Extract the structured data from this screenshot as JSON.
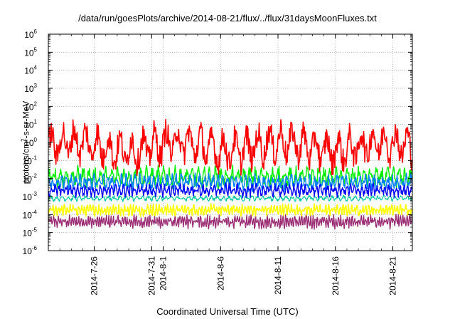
{
  "chart_data": {
    "type": "line",
    "title": "/data/run/goesPlots/archive/2014-08-21/flux/../flux/31daysMoonFluxes.txt",
    "xlabel": "Coordinated Universal Time (UTC)",
    "ylabel": {
      "prefix": "protons/cm",
      "exp": "2",
      "suffix": "-s-sr-MeV"
    },
    "yscale": "log",
    "ylim_exp": [
      -6,
      6
    ],
    "yticks": [
      {
        "base": "10",
        "exp": "-6"
      },
      {
        "base": "10",
        "exp": "-5"
      },
      {
        "base": "10",
        "exp": "-4"
      },
      {
        "base": "10",
        "exp": "-3"
      },
      {
        "base": "10",
        "exp": "-2"
      },
      {
        "base": "10",
        "exp": "-1"
      },
      {
        "base": "10",
        "exp": "0"
      },
      {
        "base": "10",
        "exp": "1"
      },
      {
        "base": "10",
        "exp": "2"
      },
      {
        "base": "10",
        "exp": "3"
      },
      {
        "base": "10",
        "exp": "4"
      },
      {
        "base": "10",
        "exp": "5"
      },
      {
        "base": "10",
        "exp": "6"
      }
    ],
    "xrange_days": [
      "2014-07-22",
      "2014-08-22.7"
    ],
    "xticks": [
      {
        "date": "2014-07-26",
        "label": "2014-7-26"
      },
      {
        "date": "2014-07-31",
        "label": "2014-7-31"
      },
      {
        "date": "2014-08-01",
        "label": "2014-8-1"
      },
      {
        "date": "2014-08-06",
        "label": "2014-8-6"
      },
      {
        "date": "2014-08-11",
        "label": "2014-8-11"
      },
      {
        "date": "2014-08-16",
        "label": "2014-8-16"
      },
      {
        "date": "2014-08-21",
        "label": "2014-8-21"
      }
    ],
    "grid": true,
    "series": [
      {
        "color": "#ff0000",
        "typical": 0.6,
        "swing_decades": 1.2,
        "period_days": 1.0,
        "width": 1.6
      },
      {
        "color": "#00ee00",
        "typical": 0.012,
        "swing_decades": 0.55,
        "period_days": 0.5,
        "width": 1.4
      },
      {
        "color": "#0080ff",
        "typical": 0.006,
        "swing_decades": 0.45,
        "period_days": 0.4,
        "width": 1.4
      },
      {
        "color": "#0000ff",
        "typical": 0.0022,
        "swing_decades": 0.35,
        "period_days": 0.33,
        "width": 1.4
      },
      {
        "color": "#ffff00",
        "typical": 0.00018,
        "swing_decades": 0.3,
        "period_days": 0.25,
        "width": 1.6
      },
      {
        "color": "#00c8a0",
        "typical": 0.0008,
        "swing_decades": 0.15,
        "period_days": 0.5,
        "width": 1.2
      },
      {
        "color": "#9b2d74",
        "typical": 4e-05,
        "swing_decades": 0.35,
        "period_days": 0.2,
        "width": 1.4
      }
    ]
  }
}
